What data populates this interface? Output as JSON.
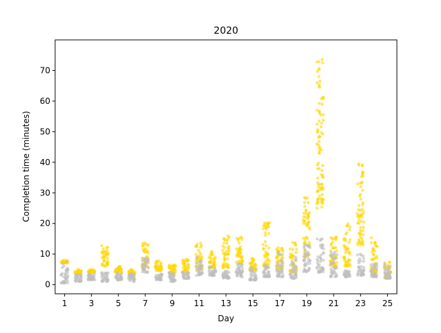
{
  "chart_data": {
    "type": "scatter",
    "style": "strip",
    "title": "2020",
    "xlabel": "Day",
    "ylabel": "Completion time (minutes)",
    "xlim": [
      0.3,
      25.7
    ],
    "ylim": [
      -3,
      80
    ],
    "xticks": [
      1,
      3,
      5,
      7,
      9,
      11,
      13,
      15,
      17,
      19,
      21,
      23,
      25
    ],
    "yticks": [
      0,
      10,
      20,
      30,
      40,
      50,
      60,
      70
    ],
    "grid": false,
    "legend": "none",
    "series": [
      {
        "color": "#FFD700",
        "days": [
          1,
          2,
          3,
          4,
          5,
          6,
          7,
          8,
          9,
          10,
          11,
          12,
          13,
          14,
          15,
          16,
          17,
          18,
          19,
          20,
          21,
          22,
          23,
          24,
          25
        ],
        "min": [
          7,
          3.5,
          4,
          6,
          4,
          3,
          5.5,
          4.5,
          3.5,
          4,
          5,
          5.5,
          5.5,
          7,
          4.5,
          6,
          5,
          4,
          9,
          25,
          6,
          6,
          13,
          4,
          2
        ],
        "max": [
          8,
          5,
          5,
          13,
          6,
          5,
          14,
          8,
          6.5,
          8.5,
          14,
          11,
          16,
          16,
          9,
          21,
          13,
          14,
          28.5,
          74,
          16,
          20.5,
          40,
          15.5,
          7.5
        ]
      },
      {
        "color": "#BEBEBE",
        "days": [
          1,
          2,
          3,
          4,
          5,
          6,
          7,
          8,
          9,
          10,
          11,
          12,
          13,
          14,
          15,
          16,
          17,
          18,
          19,
          20,
          21,
          22,
          23,
          24,
          25
        ],
        "min": [
          0.5,
          1,
          1.5,
          1,
          1.5,
          1,
          4,
          1.5,
          1,
          2,
          3,
          3,
          2,
          2.5,
          1.5,
          2.5,
          2.5,
          2,
          4,
          4,
          2.5,
          2.5,
          3,
          2.5,
          2
        ],
        "max": [
          7.5,
          3.5,
          3.5,
          4,
          4,
          3.5,
          9,
          3.5,
          4,
          4,
          9,
          6,
          4.5,
          7,
          6,
          6.5,
          10.5,
          9.5,
          13.5,
          15,
          11,
          4.5,
          10.5,
          7,
          7
        ]
      }
    ]
  }
}
